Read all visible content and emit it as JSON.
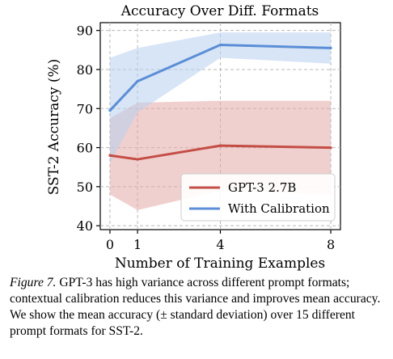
{
  "chart_data": {
    "type": "line",
    "title": "Accuracy Over Diff. Formats",
    "xlabel": "Number of Training Examples",
    "ylabel": "SST-2 Accuracy (%)",
    "x": [
      0,
      1,
      4,
      8
    ],
    "x_ticks": [
      "0",
      "1",
      "4",
      "8"
    ],
    "xlim": [
      -0.35,
      8.35
    ],
    "y_ticks": [
      "40",
      "50",
      "60",
      "70",
      "80",
      "90"
    ],
    "ylim": [
      39,
      92
    ],
    "grid": true,
    "legend_position": "lower-right",
    "series": [
      {
        "name": "GPT-3 2.7B",
        "color": "#c44e46",
        "band_color": "#e3aaa6",
        "mean": [
          58.0,
          57.0,
          60.5,
          60.0
        ],
        "lower": [
          48.0,
          44.0,
          49.0,
          48.0
        ],
        "upper": [
          67.5,
          71.5,
          72.0,
          72.0
        ]
      },
      {
        "name": "With Calibration",
        "color": "#5b8ed6",
        "band_color": "#b8d0ee",
        "mean": [
          69.5,
          77.0,
          86.3,
          85.5
        ],
        "lower": [
          56.0,
          69.0,
          83.0,
          81.5
        ],
        "upper": [
          83.0,
          85.5,
          89.5,
          89.5
        ]
      }
    ]
  },
  "caption": {
    "label": "Figure 7.",
    "text": " GPT-3 has high variance across different prompt formats; contextual calibration reduces this variance and improves mean accuracy. We show the mean accuracy (± standard deviation) over 15 different prompt formats for SST-2."
  }
}
